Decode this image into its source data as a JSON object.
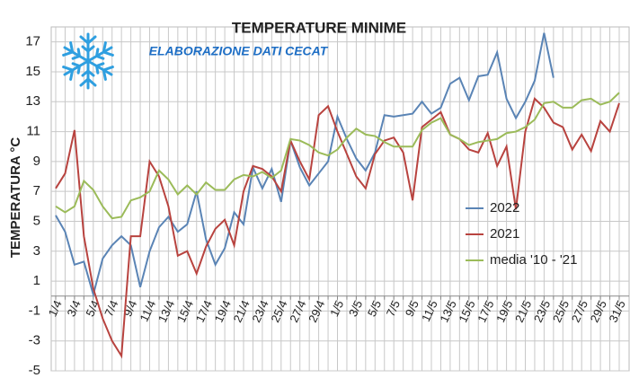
{
  "chart_data": {
    "type": "line",
    "title": "TEMPERATURE  MINIME",
    "subtitle": "ELABORAZIONE DATI CECAT",
    "y_label": "TEMPERATURA °C",
    "categories": [
      "1/4",
      null,
      "3/4",
      null,
      "5/4",
      null,
      "7/4",
      null,
      "9/4",
      null,
      "11/4",
      null,
      "13/4",
      null,
      "15/4",
      null,
      "17/4",
      null,
      "19/4",
      null,
      "21/4",
      null,
      "23/4",
      null,
      "25/4",
      null,
      "27/4",
      null,
      "29/4",
      null,
      "1/5",
      null,
      "3/5",
      null,
      "5/5",
      null,
      "7/5",
      null,
      "9/5",
      null,
      "11/5",
      null,
      "13/5",
      null,
      "15/5",
      null,
      "17/5",
      null,
      "19/5",
      null,
      "21/5",
      null,
      "23/5",
      null,
      "25/5",
      null,
      "27/5",
      null,
      "29/5",
      null,
      "31/5"
    ],
    "series": [
      {
        "name": "2022",
        "color": "#5a84b5",
        "values": [
          5.4,
          4.3,
          2.1,
          2.3,
          0.1,
          2.5,
          3.4,
          4.0,
          3.4,
          0.6,
          3.0,
          4.6,
          5.3,
          4.3,
          4.8,
          7.0,
          3.8,
          2.1,
          3.2,
          5.6,
          4.8,
          8.6,
          7.2,
          8.5,
          6.3,
          10.4,
          8.6,
          7.4,
          8.2,
          9.0,
          12.0,
          10.5,
          9.2,
          8.4,
          9.6,
          12.1,
          12.0,
          12.1,
          12.2,
          13.0,
          12.2,
          12.6,
          14.2,
          14.6,
          13.1,
          14.7,
          14.8,
          16.3,
          13.2,
          11.9,
          13.0,
          14.4,
          17.6,
          14.6,
          null,
          null,
          null,
          null,
          null,
          null,
          null
        ]
      },
      {
        "name": "2021",
        "color": "#b8433f",
        "values": [
          7.2,
          8.2,
          11.1,
          4.0,
          0.5,
          -1.5,
          -3.0,
          -4.0,
          4.0,
          4.0,
          9.0,
          8.0,
          6.0,
          2.7,
          3.0,
          1.5,
          3.3,
          4.5,
          5.1,
          3.4,
          7.0,
          8.7,
          8.5,
          8.0,
          7.0,
          10.4,
          9.0,
          7.8,
          12.1,
          12.7,
          11.0,
          9.5,
          8.0,
          7.2,
          9.5,
          10.4,
          10.6,
          9.6,
          6.4,
          11.3,
          11.8,
          12.3,
          10.8,
          10.5,
          9.8,
          9.6,
          10.9,
          8.7,
          10.0,
          5.8,
          11.0,
          13.2,
          12.6,
          11.6,
          11.3,
          9.8,
          10.8,
          9.7,
          11.7,
          11.0,
          12.9
        ]
      },
      {
        "name": "media '10 - '21",
        "color": "#9bbb59",
        "values": [
          6.0,
          5.6,
          6.0,
          7.7,
          7.1,
          6.0,
          5.2,
          5.3,
          6.4,
          6.6,
          7.0,
          8.4,
          7.8,
          6.8,
          7.4,
          6.8,
          7.6,
          7.1,
          7.1,
          7.8,
          8.1,
          8.0,
          8.3,
          7.9,
          8.4,
          10.5,
          10.4,
          10.1,
          9.6,
          9.4,
          9.8,
          10.6,
          11.2,
          10.8,
          10.7,
          10.3,
          10.0,
          10.0,
          10.0,
          11.1,
          11.6,
          11.9,
          10.8,
          10.5,
          10.1,
          10.3,
          10.4,
          10.5,
          10.9,
          11.0,
          11.3,
          11.8,
          12.9,
          13.0,
          12.6,
          12.6,
          13.1,
          13.2,
          12.8,
          13.0,
          13.6
        ]
      }
    ],
    "ylim": [
      -5,
      18
    ],
    "yticks": [
      -5,
      -3,
      -1,
      1,
      3,
      5,
      7,
      9,
      11,
      13,
      15,
      17
    ],
    "grid": true
  }
}
